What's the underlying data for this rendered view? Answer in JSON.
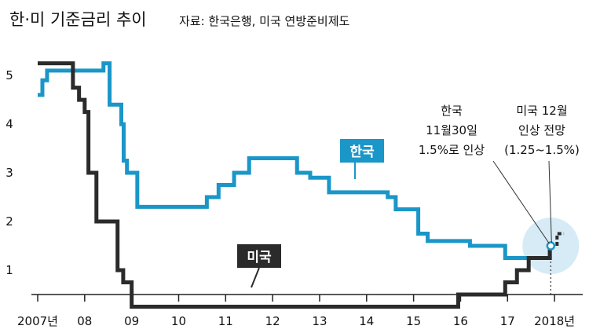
{
  "title": "한·미 기준금리 추이",
  "source": "자료: 한국은행, 미국 연방준비제도",
  "chart_data": {
    "type": "line",
    "title": "한·미 기준금리 추이",
    "xlabel": "",
    "ylabel": "",
    "xlim": [
      2007,
      2018.6
    ],
    "ylim": [
      0.5,
      5.55
    ],
    "x_ticks": [
      {
        "x": 2007,
        "label": "2007년"
      },
      {
        "x": 2008,
        "label": "08"
      },
      {
        "x": 2009,
        "label": "09"
      },
      {
        "x": 2010,
        "label": "10"
      },
      {
        "x": 2011,
        "label": "11"
      },
      {
        "x": 2012,
        "label": "12"
      },
      {
        "x": 2013,
        "label": "13"
      },
      {
        "x": 2014,
        "label": "14"
      },
      {
        "x": 2015,
        "label": "15"
      },
      {
        "x": 2016,
        "label": "16"
      },
      {
        "x": 2017,
        "label": "17"
      },
      {
        "x": 2018,
        "label": "2018년"
      }
    ],
    "y_ticks": [
      {
        "y": 1,
        "label": "1"
      },
      {
        "y": 2,
        "label": "2"
      },
      {
        "y": 3,
        "label": "3"
      },
      {
        "y": 4,
        "label": "4"
      },
      {
        "y": 5,
        "label": "5"
      }
    ],
    "series": [
      {
        "name": "한국",
        "color": "#1a96c8",
        "step": true,
        "x": [
          2007.0,
          2007.1,
          2007.2,
          2007.9,
          2008.4,
          2008.53,
          2008.78,
          2008.83,
          2008.9,
          2009.12,
          2010.3,
          2010.6,
          2010.85,
          2011.18,
          2011.5,
          2012.3,
          2012.52,
          2012.8,
          2013.2,
          2014.45,
          2014.62,
          2014.9,
          2015.1,
          2015.3,
          2016.2,
          2016.95,
          2017.9
        ],
        "y": [
          4.6,
          4.9,
          5.1,
          5.1,
          5.25,
          4.4,
          4.0,
          3.25,
          3.0,
          2.3,
          2.3,
          2.5,
          2.75,
          3.0,
          3.3,
          3.3,
          3.0,
          2.9,
          2.6,
          2.5,
          2.25,
          2.25,
          1.75,
          1.6,
          1.5,
          1.25,
          1.5
        ]
      },
      {
        "name": "미국",
        "color": "#2b2b2b",
        "step": true,
        "x": [
          2007.0,
          2007.6,
          2007.75,
          2007.88,
          2008.0,
          2008.08,
          2008.25,
          2008.7,
          2008.82,
          2009.0,
          2015.95,
          2016.95,
          2017.2,
          2017.45,
          2017.9
        ],
        "y": [
          5.25,
          5.25,
          4.75,
          4.5,
          4.25,
          3.0,
          2.0,
          1.0,
          0.75,
          0.25,
          0.5,
          0.75,
          1.0,
          1.25,
          1.5
        ]
      }
    ],
    "projection": {
      "name": "미국 12월 인상 전망",
      "x": [
        2017.92,
        2018.2
      ],
      "y": [
        1.5,
        1.75
      ],
      "style": "dashed"
    },
    "annotations": {
      "korea_hike": [
        "한국",
        "11월30일",
        "1.5%로 인상"
      ],
      "us_forecast": [
        "미국 12월",
        "인상 전망",
        "(1.25~1.5%)"
      ],
      "korea_tag": "한국",
      "us_tag": "미국"
    }
  }
}
